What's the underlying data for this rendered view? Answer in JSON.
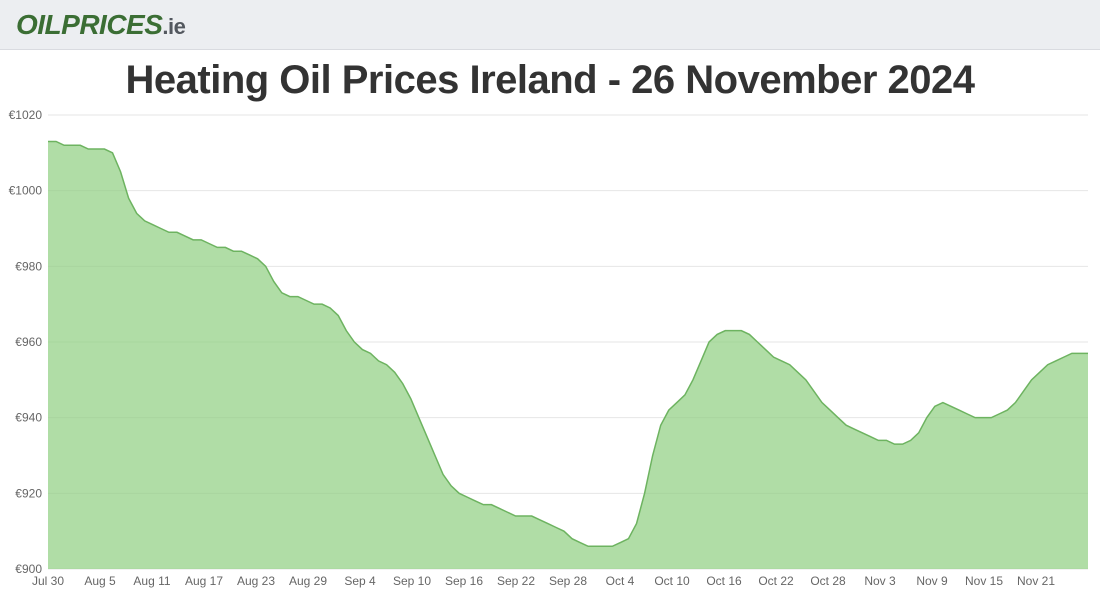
{
  "header": {
    "logo_part1": "OILPRICES",
    "logo_part2": ".ie"
  },
  "chart": {
    "type": "area",
    "title": "Heating Oil Prices Ireland - 26 November 2024",
    "title_fontsize": 40,
    "title_color": "#333333",
    "background_color": "#ffffff",
    "grid_color": "#e6e6e6",
    "fill_color": "#8ecf80",
    "line_color": "#6db360",
    "fill_opacity": 0.7,
    "tick_label_color": "#666666",
    "tick_label_fontsize": 12,
    "ylim": [
      900,
      1020
    ],
    "ytick_step": 20,
    "ytick_prefix": "€",
    "yticks": [
      900,
      920,
      940,
      960,
      980,
      1000,
      1020
    ],
    "xticks": [
      "Jul 30",
      "Aug 5",
      "Aug 11",
      "Aug 17",
      "Aug 23",
      "Aug 29",
      "Sep 4",
      "Sep 10",
      "Sep 16",
      "Sep 22",
      "Sep 28",
      "Oct 4",
      "Oct 10",
      "Oct 16",
      "Oct 22",
      "Oct 28",
      "Nov 3",
      "Nov 9",
      "Nov 15",
      "Nov 21"
    ],
    "values": [
      1013,
      1013,
      1012,
      1012,
      1012,
      1011,
      1011,
      1011,
      1010,
      1005,
      998,
      994,
      992,
      991,
      990,
      989,
      989,
      988,
      987,
      987,
      986,
      985,
      985,
      984,
      984,
      983,
      982,
      980,
      976,
      973,
      972,
      972,
      971,
      970,
      970,
      969,
      967,
      963,
      960,
      958,
      957,
      955,
      954,
      952,
      949,
      945,
      940,
      935,
      930,
      925,
      922,
      920,
      919,
      918,
      917,
      917,
      916,
      915,
      914,
      914,
      914,
      913,
      912,
      911,
      910,
      908,
      907,
      906,
      906,
      906,
      906,
      907,
      908,
      912,
      920,
      930,
      938,
      942,
      944,
      946,
      950,
      955,
      960,
      962,
      963,
      963,
      963,
      962,
      960,
      958,
      956,
      955,
      954,
      952,
      950,
      947,
      944,
      942,
      940,
      938,
      937,
      936,
      935,
      934,
      934,
      933,
      933,
      934,
      936,
      940,
      943,
      944,
      943,
      942,
      941,
      940,
      940,
      940,
      941,
      942,
      944,
      947,
      950,
      952,
      954,
      955,
      956,
      957,
      957,
      957
    ]
  }
}
